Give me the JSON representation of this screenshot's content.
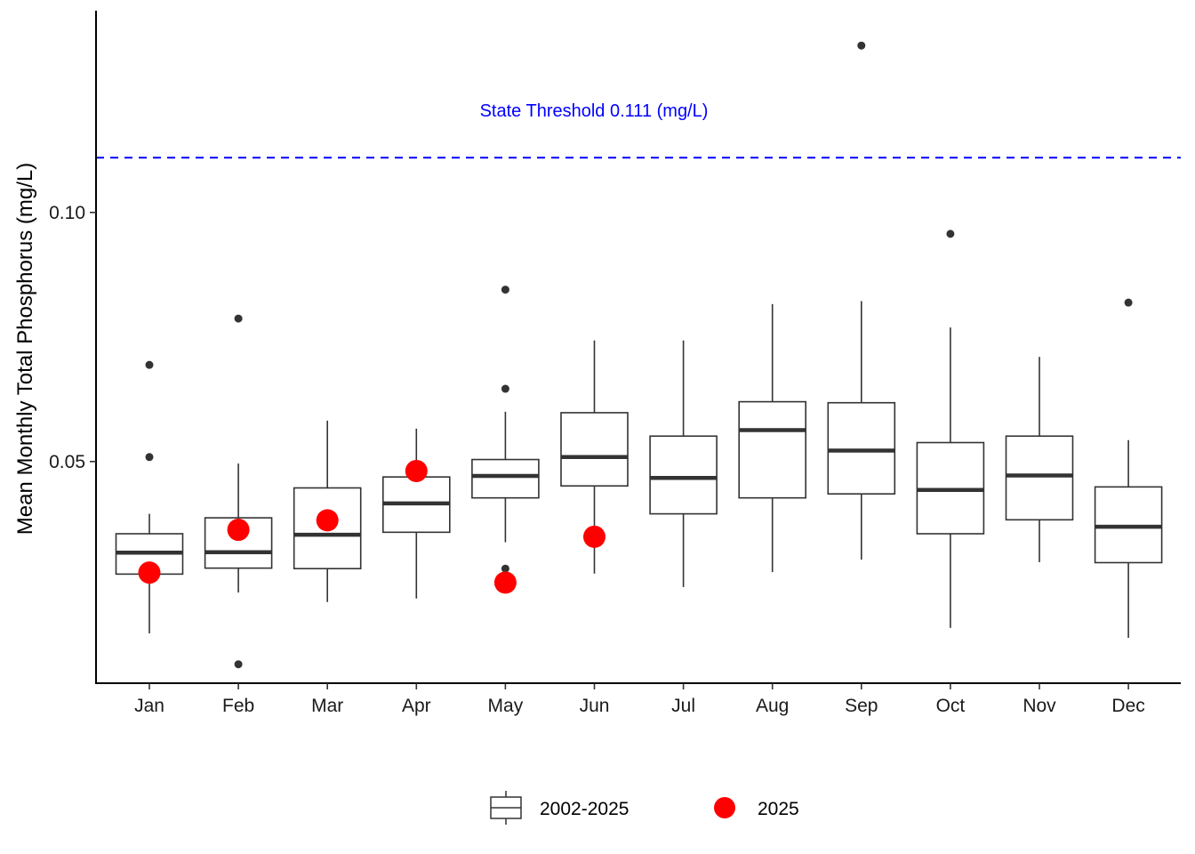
{
  "chart_data": {
    "type": "box",
    "title": "",
    "xlabel": "",
    "ylabel": "Mean Monthly Total Phosphorus (mg/L)",
    "ylim": [
      0.0055,
      0.1405
    ],
    "yticks": [
      {
        "value": 0.05,
        "label": "0.05"
      },
      {
        "value": 0.1,
        "label": "0.10"
      }
    ],
    "grid": false,
    "legend_position": "bottom",
    "threshold": {
      "value": 0.111,
      "label": "State Threshold 0.111 (mg/L)",
      "color": "#0000ff",
      "style": "dashed"
    },
    "categories": [
      "Jan",
      "Feb",
      "Mar",
      "Apr",
      "May",
      "Jun",
      "Jul",
      "Aug",
      "Sep",
      "Oct",
      "Nov",
      "Dec"
    ],
    "series": [
      {
        "name": "2002-2025",
        "kind": "boxplot",
        "color": "#333333",
        "boxes": [
          {
            "whisker_low": 0.0155,
            "q1": 0.0274,
            "median": 0.0317,
            "q3": 0.0355,
            "whisker_high": 0.0395,
            "outliers": [
              0.0509,
              0.0694
            ]
          },
          {
            "whisker_low": 0.0237,
            "q1": 0.0286,
            "median": 0.0318,
            "q3": 0.0387,
            "whisker_high": 0.0496,
            "outliers": [
              0.0787,
              0.0093
            ]
          },
          {
            "whisker_low": 0.0218,
            "q1": 0.0285,
            "median": 0.0353,
            "q3": 0.0447,
            "whisker_high": 0.0582,
            "outliers": []
          },
          {
            "whisker_low": 0.0225,
            "q1": 0.0358,
            "median": 0.0416,
            "q3": 0.0469,
            "whisker_high": 0.0566,
            "outliers": []
          },
          {
            "whisker_low": 0.0338,
            "q1": 0.0427,
            "median": 0.0471,
            "q3": 0.0504,
            "whisker_high": 0.06,
            "outliers": [
              0.0845,
              0.0646,
              0.0285
            ]
          },
          {
            "whisker_low": 0.0275,
            "q1": 0.0451,
            "median": 0.0509,
            "q3": 0.0598,
            "whisker_high": 0.0743,
            "outliers": []
          },
          {
            "whisker_low": 0.0248,
            "q1": 0.0395,
            "median": 0.0467,
            "q3": 0.0551,
            "whisker_high": 0.0743,
            "outliers": []
          },
          {
            "whisker_low": 0.0278,
            "q1": 0.0427,
            "median": 0.0563,
            "q3": 0.062,
            "whisker_high": 0.0816,
            "outliers": []
          },
          {
            "whisker_low": 0.0303,
            "q1": 0.0435,
            "median": 0.0522,
            "q3": 0.0618,
            "whisker_high": 0.0822,
            "outliers": [
              0.1335
            ]
          },
          {
            "whisker_low": 0.0166,
            "q1": 0.0355,
            "median": 0.0443,
            "q3": 0.0538,
            "whisker_high": 0.0769,
            "outliers": [
              0.0957
            ]
          },
          {
            "whisker_low": 0.0298,
            "q1": 0.0383,
            "median": 0.0472,
            "q3": 0.0551,
            "whisker_high": 0.071,
            "outliers": []
          },
          {
            "whisker_low": 0.0146,
            "q1": 0.0297,
            "median": 0.0369,
            "q3": 0.0449,
            "whisker_high": 0.0543,
            "outliers": [
              0.0819
            ]
          }
        ]
      },
      {
        "name": "2025",
        "kind": "points",
        "color": "#ff0000",
        "values": [
          0.0277,
          0.0363,
          0.0382,
          0.0481,
          0.0257,
          0.0349,
          null,
          null,
          null,
          null,
          null,
          null
        ]
      }
    ]
  }
}
